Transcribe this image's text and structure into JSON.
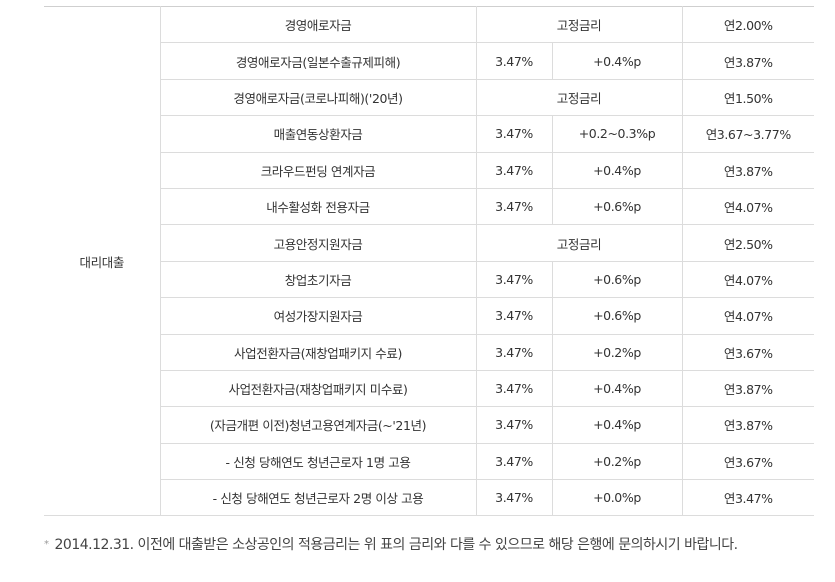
{
  "category": "대리대출",
  "rows": [
    {
      "name": "경영애로자금",
      "type": "고정금리",
      "final": "연2.00%"
    },
    {
      "name": "경영애로자금(일본수출규제피해)",
      "base": "3.47%",
      "add": "+0.4%p",
      "final": "연3.87%"
    },
    {
      "name": "경영애로자금(코로나피해)('20년)",
      "type": "고정금리",
      "final": "연1.50%"
    },
    {
      "name": "매출연동상환자금",
      "base": "3.47%",
      "add": "+0.2~0.3%p",
      "final": "연3.67~3.77%"
    },
    {
      "name": "크라우드펀딩 연계자금",
      "base": "3.47%",
      "add": "+0.4%p",
      "final": "연3.87%"
    },
    {
      "name": "내수활성화 전용자금",
      "base": "3.47%",
      "add": "+0.6%p",
      "final": "연4.07%"
    },
    {
      "name": "고용안정지원자금",
      "type": "고정금리",
      "final": "연2.50%"
    },
    {
      "name": "창업초기자금",
      "base": "3.47%",
      "add": "+0.6%p",
      "final": "연4.07%"
    },
    {
      "name": "여성가장지원자금",
      "base": "3.47%",
      "add": "+0.6%p",
      "final": "연4.07%"
    },
    {
      "name": "사업전환자금(재창업패키지 수료)",
      "base": "3.47%",
      "add": "+0.2%p",
      "final": "연3.67%"
    },
    {
      "name": "사업전환자금(재창업패키지 미수료)",
      "base": "3.47%",
      "add": "+0.4%p",
      "final": "연3.87%"
    },
    {
      "name": "(자금개편 이전)청년고용연계자금(~'21년)",
      "base": "3.47%",
      "add": "+0.4%p",
      "final": "연3.87%"
    },
    {
      "name": "- 신청 당해연도 청년근로자 1명 고용",
      "base": "3.47%",
      "add": "+0.2%p",
      "final": "연3.67%"
    },
    {
      "name": "- 신청 당해연도 청년근로자 2명 이상 고용",
      "base": "3.47%",
      "add": "+0.0%p",
      "final": "연3.47%"
    }
  ],
  "note": {
    "mark": "*",
    "text": "2014.12.31. 이전에 대출받은 소상공인의 적용금리는 위 표의 금리와 다를 수 있으므로 해당 은행에 문의하시기 바랍니다."
  }
}
